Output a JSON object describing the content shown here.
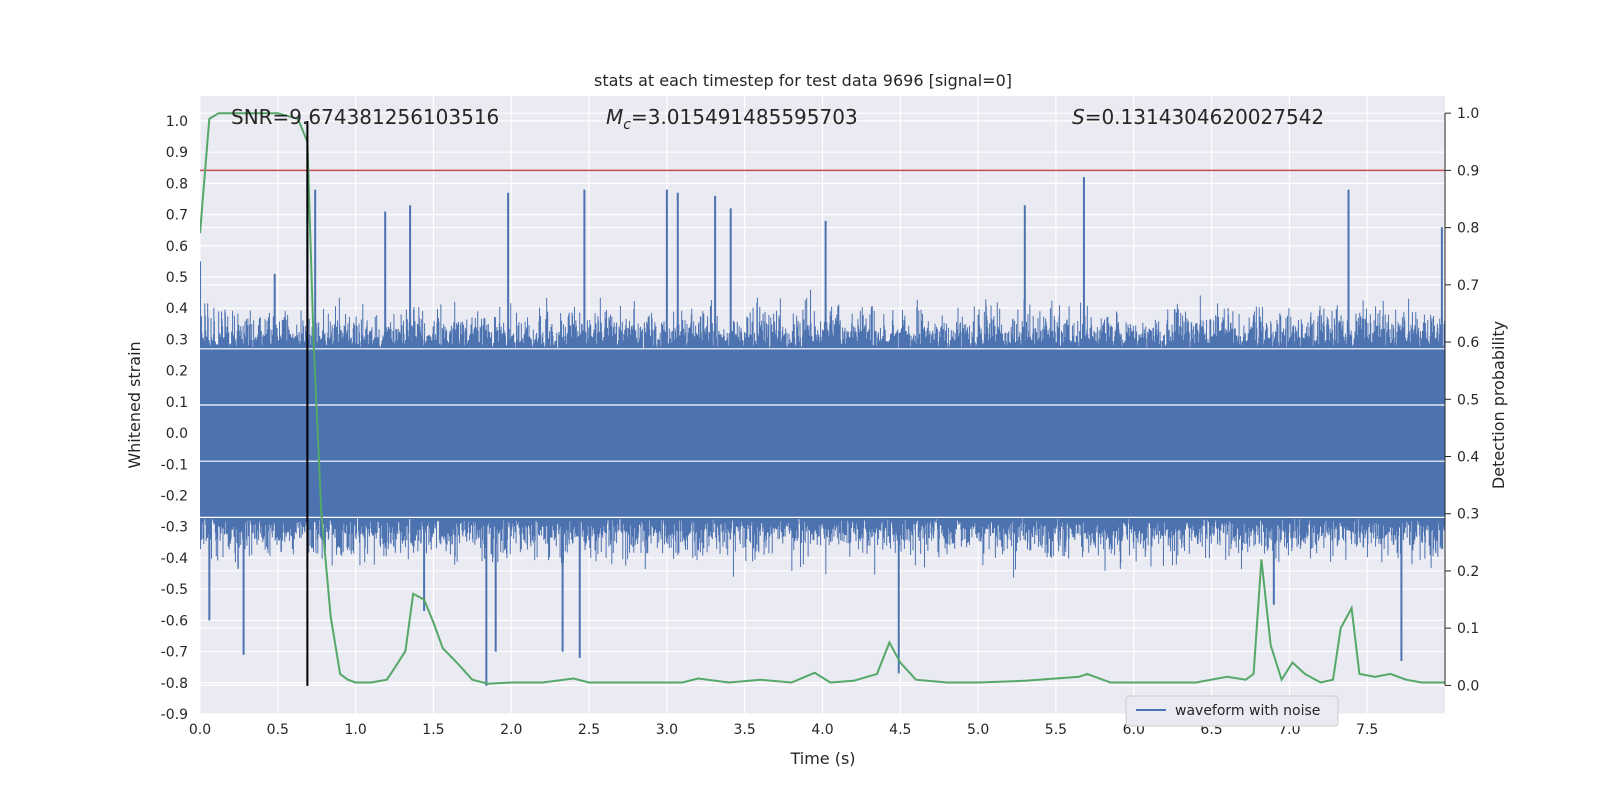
{
  "chart_data": {
    "type": "line",
    "title": "stats at each timestep for test data 9696 [signal=0]",
    "xlabel": "Time (s)",
    "ylabel_left": "Whitened strain",
    "ylabel_right": "Detection probability",
    "xlim": [
      0.0,
      8.0
    ],
    "ylim_left": [
      -0.9,
      1.08
    ],
    "ylim_right": [
      -0.05,
      1.03
    ],
    "x_ticks": [
      "0.0",
      "0.5",
      "1.0",
      "1.5",
      "2.0",
      "2.5",
      "3.0",
      "3.5",
      "4.0",
      "4.5",
      "5.0",
      "5.5",
      "6.0",
      "6.5",
      "7.0",
      "7.5"
    ],
    "y_left_ticks": [
      "1.0",
      "0.9",
      "0.8",
      "0.7",
      "0.6",
      "0.5",
      "0.4",
      "0.3",
      "0.2",
      "0.1",
      "0.0",
      "-0.1",
      "-0.2",
      "-0.3",
      "-0.4",
      "-0.5",
      "-0.6",
      "-0.7",
      "-0.8",
      "-0.9"
    ],
    "y_right_ticks": [
      "1.0",
      "0.9",
      "0.8",
      "0.7",
      "0.6",
      "0.5",
      "0.4",
      "0.3",
      "0.2",
      "0.1",
      "0.0"
    ],
    "grid": true,
    "legend_position": "bottom-right",
    "stats": {
      "snr": "SNR=9.674381256103516",
      "mc_symbol": "M",
      "mc_sub": "c",
      "mc_value": "=3.015491485595703",
      "s_symbol": "S",
      "s_value": "=0.1314304620027542"
    },
    "series": [
      {
        "name": "waveform with noise",
        "color": "#4c72b0",
        "axis": "left",
        "description_kind": "noise",
        "core_amplitude": 0.27,
        "peaks": [
          {
            "x": 0.0,
            "y": 0.55
          },
          {
            "x": 0.06,
            "y": -0.6
          },
          {
            "x": 0.28,
            "y": -0.71
          },
          {
            "x": 0.48,
            "y": 0.51
          },
          {
            "x": 0.69,
            "y": 0.83
          },
          {
            "x": 0.74,
            "y": 0.78
          },
          {
            "x": 1.19,
            "y": 0.71
          },
          {
            "x": 1.35,
            "y": 0.73
          },
          {
            "x": 1.44,
            "y": -0.57
          },
          {
            "x": 1.84,
            "y": -0.81
          },
          {
            "x": 1.9,
            "y": -0.7
          },
          {
            "x": 1.98,
            "y": 0.77
          },
          {
            "x": 2.33,
            "y": -0.7
          },
          {
            "x": 2.44,
            "y": -0.72
          },
          {
            "x": 2.47,
            "y": 0.78
          },
          {
            "x": 3.0,
            "y": 0.78
          },
          {
            "x": 3.07,
            "y": 0.77
          },
          {
            "x": 3.31,
            "y": 0.76
          },
          {
            "x": 3.41,
            "y": 0.72
          },
          {
            "x": 4.02,
            "y": 0.68
          },
          {
            "x": 4.49,
            "y": -0.77
          },
          {
            "x": 5.3,
            "y": 0.73
          },
          {
            "x": 5.68,
            "y": 0.82
          },
          {
            "x": 6.9,
            "y": -0.55
          },
          {
            "x": 7.38,
            "y": 0.78
          },
          {
            "x": 7.72,
            "y": -0.73
          },
          {
            "x": 7.98,
            "y": 0.66
          }
        ]
      },
      {
        "name": "",
        "color": "#55a868",
        "axis": "right",
        "x": [
          0.0,
          0.06,
          0.12,
          0.2,
          0.35,
          0.5,
          0.63,
          0.69,
          0.73,
          0.78,
          0.84,
          0.9,
          0.95,
          1.0,
          1.1,
          1.2,
          1.25,
          1.32,
          1.37,
          1.44,
          1.5,
          1.56,
          1.65,
          1.75,
          1.85,
          2.0,
          2.2,
          2.4,
          2.5,
          2.7,
          2.9,
          3.1,
          3.2,
          3.4,
          3.6,
          3.8,
          3.95,
          4.05,
          4.2,
          4.35,
          4.43,
          4.5,
          4.6,
          4.8,
          5.0,
          5.3,
          5.5,
          5.65,
          5.7,
          5.85,
          6.1,
          6.4,
          6.6,
          6.72,
          6.77,
          6.82,
          6.88,
          6.95,
          7.02,
          7.1,
          7.2,
          7.28,
          7.33,
          7.4,
          7.45,
          7.55,
          7.65,
          7.75,
          7.85,
          8.0
        ],
        "y": [
          0.79,
          0.99,
          1.0,
          1.0,
          1.0,
          1.0,
          0.99,
          0.95,
          0.6,
          0.3,
          0.12,
          0.02,
          0.01,
          0.005,
          0.005,
          0.01,
          0.03,
          0.06,
          0.16,
          0.15,
          0.11,
          0.065,
          0.04,
          0.01,
          0.003,
          0.005,
          0.005,
          0.012,
          0.005,
          0.005,
          0.005,
          0.005,
          0.012,
          0.005,
          0.01,
          0.005,
          0.022,
          0.005,
          0.008,
          0.02,
          0.075,
          0.04,
          0.01,
          0.005,
          0.005,
          0.008,
          0.012,
          0.015,
          0.02,
          0.005,
          0.005,
          0.005,
          0.015,
          0.01,
          0.02,
          0.22,
          0.07,
          0.01,
          0.04,
          0.02,
          0.005,
          0.01,
          0.1,
          0.135,
          0.02,
          0.015,
          0.02,
          0.01,
          0.005,
          0.005
        ]
      },
      {
        "name": "",
        "color": "#c44e52",
        "axis": "right",
        "kind": "threshold",
        "y": 0.9
      },
      {
        "name": "",
        "color": "#000000",
        "axis": "left",
        "kind": "vertical-marker",
        "x": 0.69,
        "y_range": [
          -0.81,
          1.0
        ]
      }
    ]
  }
}
